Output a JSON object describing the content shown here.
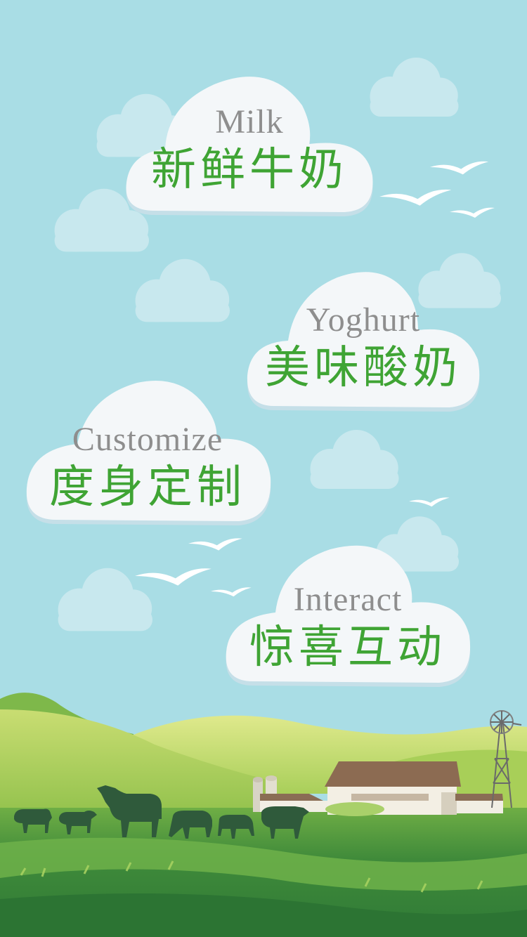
{
  "colors": {
    "sky": "#a9dde5",
    "cloud": "#f4f7f9",
    "cloud_shadow": "#cfe3ea",
    "english_text": "#8e8e8e",
    "chinese_text": "#3fa434",
    "field_dark": "#3e8a3a",
    "field_light": "#b7d35b"
  },
  "menu": [
    {
      "key": "milk",
      "en": "Milk",
      "zh": "新鲜牛奶"
    },
    {
      "key": "yoghurt",
      "en": "Yoghurt",
      "zh": "美味酸奶"
    },
    {
      "key": "customize",
      "en": "Customize",
      "zh": "度身定制"
    },
    {
      "key": "interact",
      "en": "Interact",
      "zh": "惊喜互动"
    }
  ],
  "scene": {
    "icons": [
      "cow-icon",
      "barn-icon",
      "silo-icon",
      "windmill-icon",
      "bird-icon",
      "cloud-icon"
    ]
  }
}
